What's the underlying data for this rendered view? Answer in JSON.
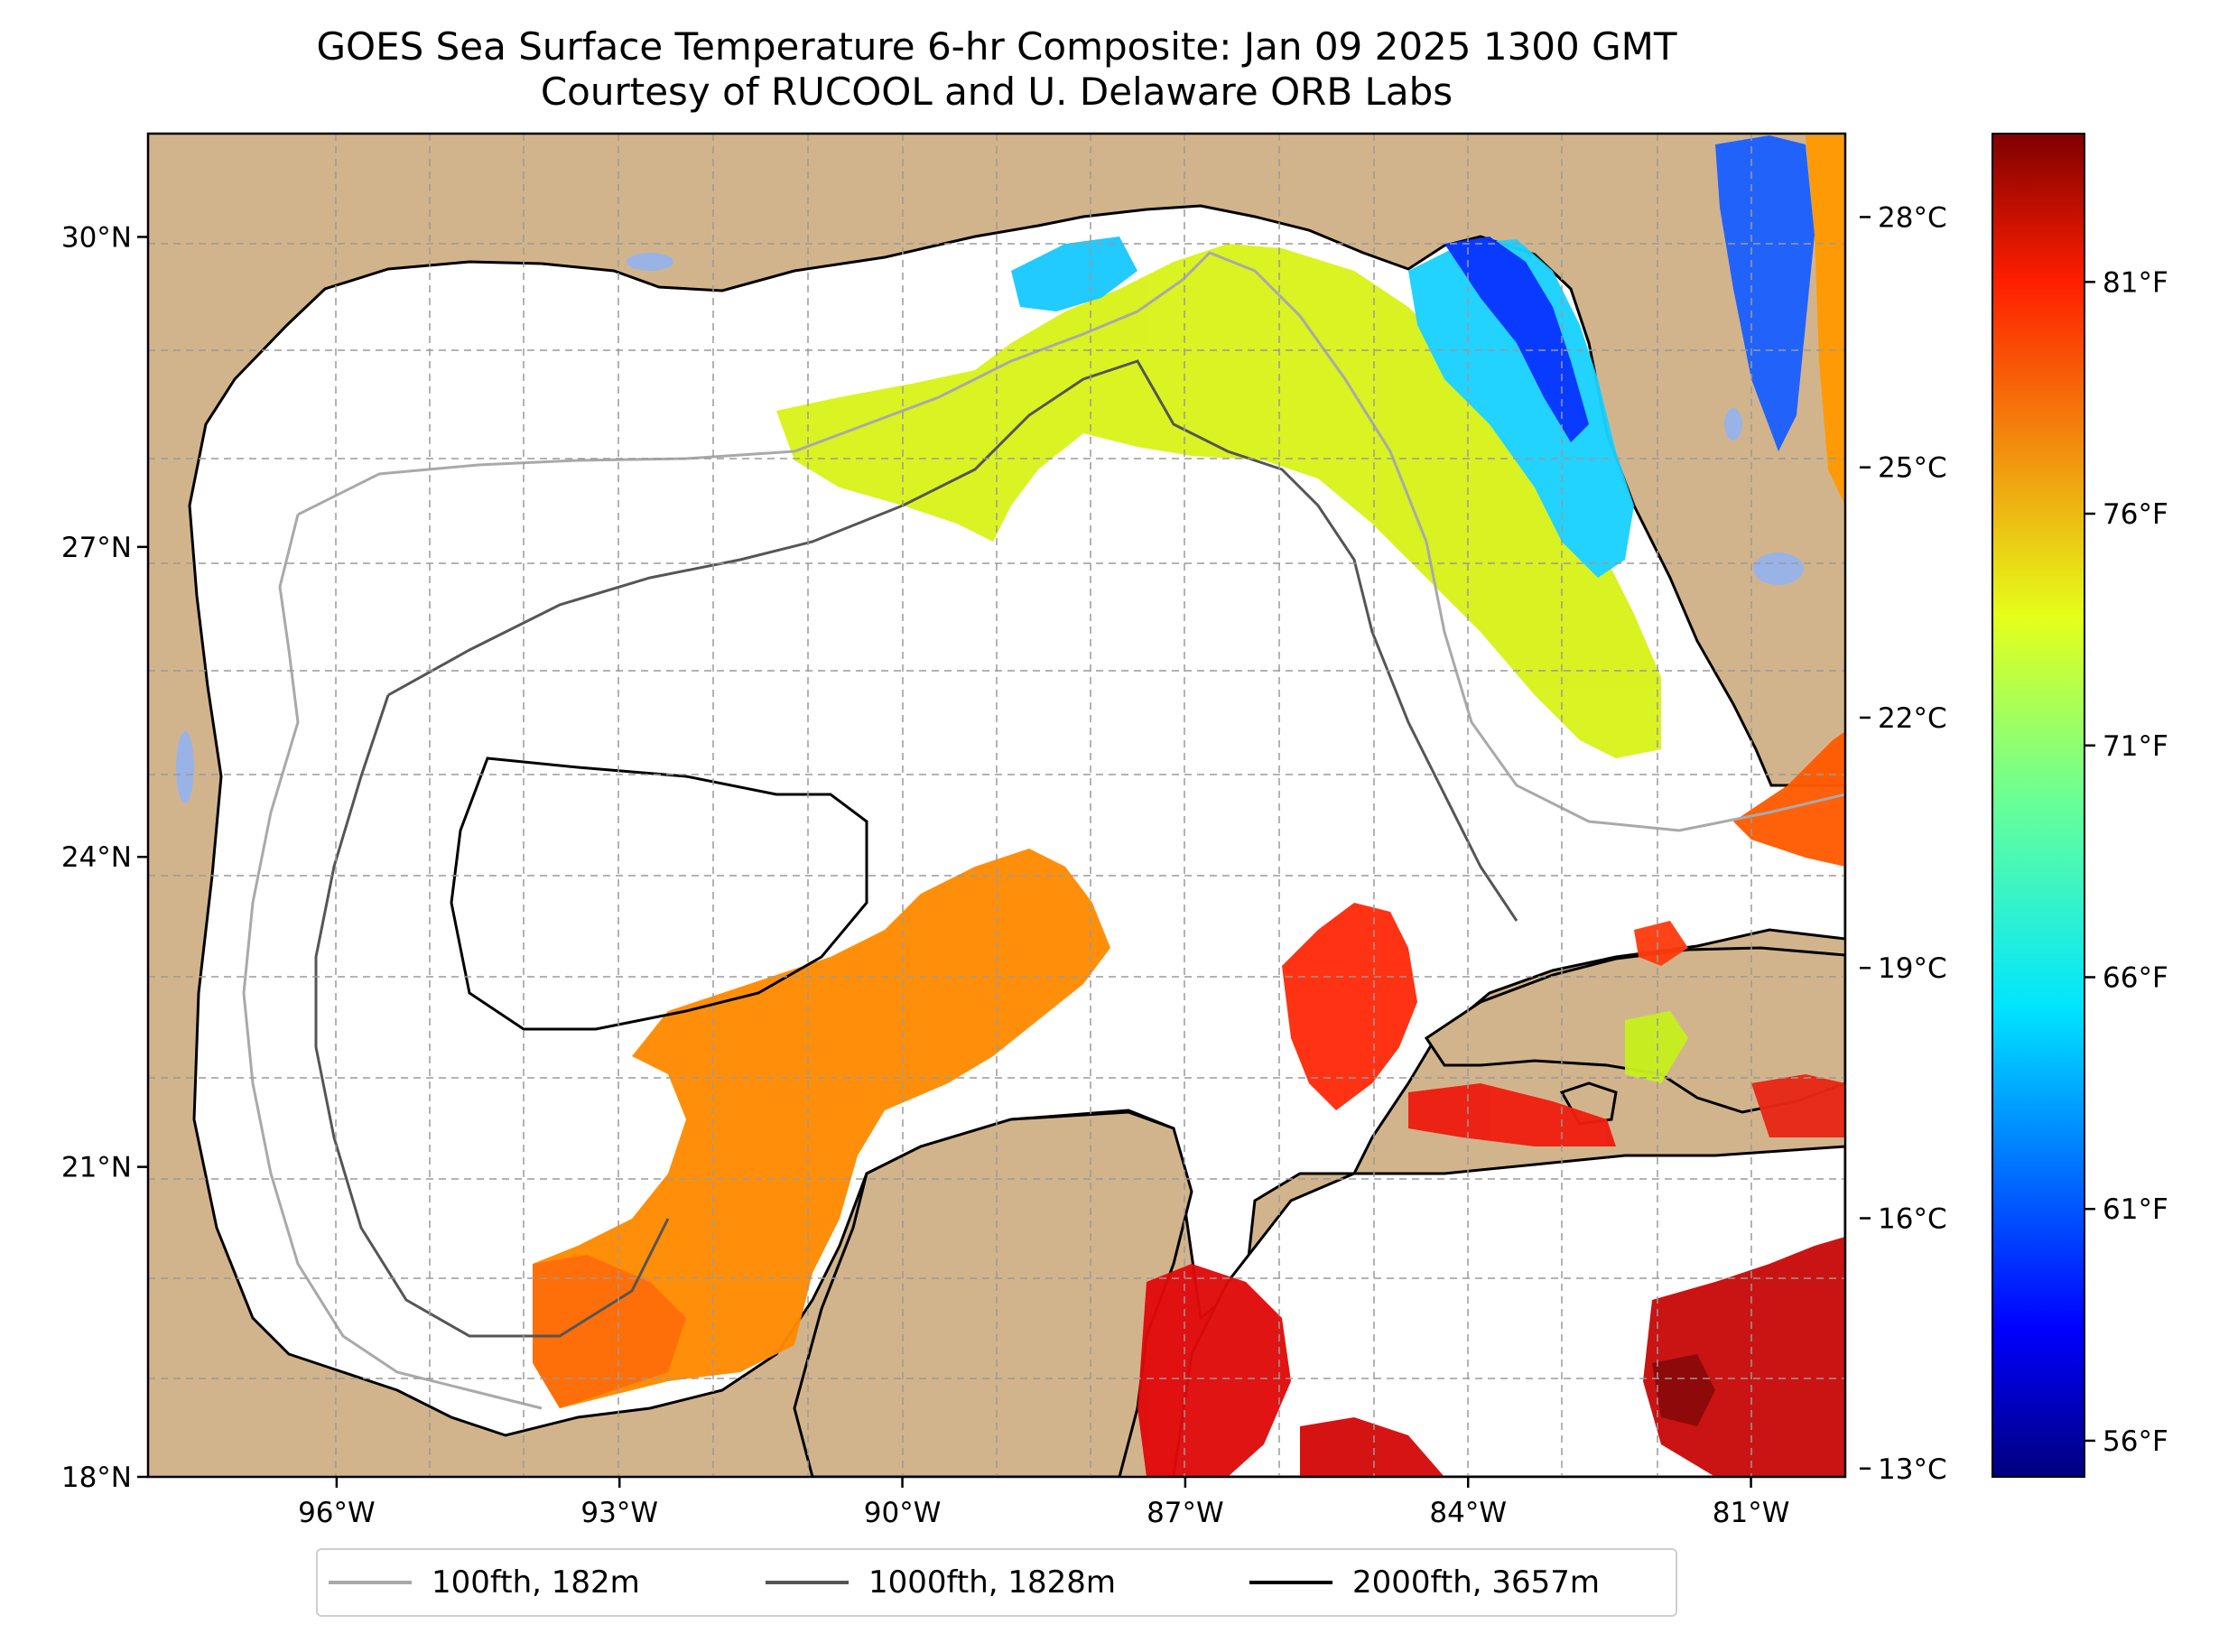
{
  "title": {
    "line1": "GOES Sea Surface Temperature 6-hr Composite: Jan 09 2025 1300 GMT",
    "line2": "Courtesy of RUCOOL and U. Delaware ORB Labs"
  },
  "map": {
    "lon_range": [
      -98,
      -80
    ],
    "lat_range": [
      18,
      31
    ],
    "lon_ticks": [
      {
        "value": -96,
        "label": "96°W"
      },
      {
        "value": -93,
        "label": "93°W"
      },
      {
        "value": -90,
        "label": "90°W"
      },
      {
        "value": -87,
        "label": "87°W"
      },
      {
        "value": -84,
        "label": "84°W"
      },
      {
        "value": -81,
        "label": "81°W"
      }
    ],
    "lat_ticks": [
      {
        "value": 30,
        "label": "30°N"
      },
      {
        "value": 27,
        "label": "27°N"
      },
      {
        "value": 24,
        "label": "24°N"
      },
      {
        "value": 21,
        "label": "21°N"
      },
      {
        "value": 18,
        "label": "18°N"
      }
    ],
    "grid": true,
    "colors": {
      "land": "#d2b48c",
      "ocean": "#ffffff",
      "lakes": "#99b3e6"
    }
  },
  "colorbar": {
    "colormap": "jet",
    "celsius_range": [
      12.9,
      29
    ],
    "celsius_ticks": [
      {
        "value": 28,
        "label": "28°C"
      },
      {
        "value": 25,
        "label": "25°C"
      },
      {
        "value": 22,
        "label": "22°C"
      },
      {
        "value": 19,
        "label": "19°C"
      },
      {
        "value": 16,
        "label": "16°C"
      },
      {
        "value": 13,
        "label": "13°C"
      }
    ],
    "fahrenheit_ticks": [
      {
        "value": 81,
        "label": "81°F"
      },
      {
        "value": 76,
        "label": "76°F"
      },
      {
        "value": 71,
        "label": "71°F"
      },
      {
        "value": 66,
        "label": "66°F"
      },
      {
        "value": 61,
        "label": "61°F"
      },
      {
        "value": 56,
        "label": "56°F"
      }
    ]
  },
  "legend": {
    "items": [
      {
        "label": "100fth, 182m",
        "color": "#a9a9a9"
      },
      {
        "label": "1000fth, 1828m",
        "color": "#555555"
      },
      {
        "label": "2000fth, 3657m",
        "color": "#000000"
      }
    ]
  }
}
